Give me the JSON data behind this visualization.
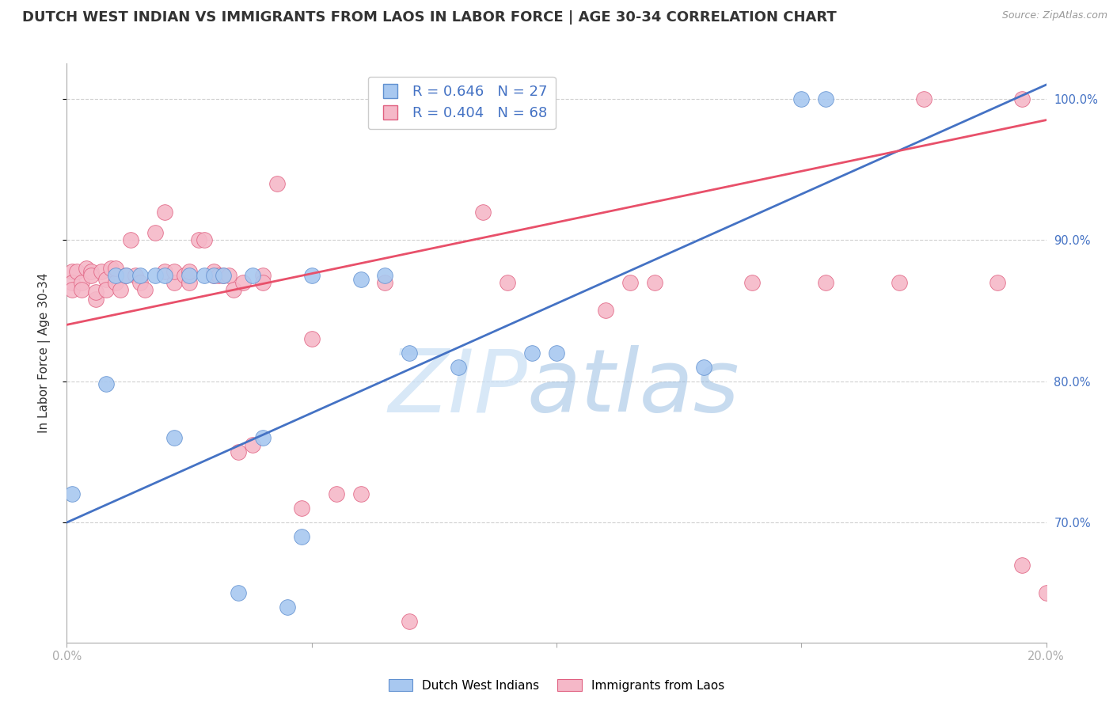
{
  "title": "DUTCH WEST INDIAN VS IMMIGRANTS FROM LAOS IN LABOR FORCE | AGE 30-34 CORRELATION CHART",
  "source": "Source: ZipAtlas.com",
  "ylabel": "In Labor Force | Age 30-34",
  "xlabel": "",
  "xlim": [
    0.0,
    0.2
  ],
  "ylim": [
    0.615,
    1.025
  ],
  "yticks": [
    0.7,
    0.8,
    0.9,
    1.0
  ],
  "ytick_labels": [
    "70.0%",
    "80.0%",
    "90.0%",
    "100.0%"
  ],
  "xticks": [
    0.0,
    0.05,
    0.1,
    0.15,
    0.2
  ],
  "xtick_labels": [
    "0.0%",
    "",
    "",
    "",
    "20.0%"
  ],
  "blue_R": 0.646,
  "blue_N": 27,
  "pink_R": 0.404,
  "pink_N": 68,
  "blue_label": "Dutch West Indians",
  "pink_label": "Immigrants from Laos",
  "blue_color": "#a8c8f0",
  "pink_color": "#f5b8c8",
  "blue_edge_color": "#6090d0",
  "pink_edge_color": "#e06080",
  "blue_line_color": "#4472c4",
  "pink_line_color": "#e8506a",
  "watermark_color": "#d8eaf8",
  "background_color": "#ffffff",
  "grid_color": "#d0d0d0",
  "title_fontsize": 13,
  "axis_label_fontsize": 11,
  "tick_fontsize": 10.5,
  "blue_scatter_x": [
    0.001,
    0.008,
    0.01,
    0.012,
    0.015,
    0.018,
    0.02,
    0.022,
    0.025,
    0.028,
    0.03,
    0.032,
    0.035,
    0.038,
    0.04,
    0.045,
    0.048,
    0.05,
    0.06,
    0.065,
    0.07,
    0.08,
    0.095,
    0.1,
    0.13,
    0.15,
    0.155
  ],
  "blue_scatter_y": [
    0.72,
    0.798,
    0.875,
    0.875,
    0.875,
    0.875,
    0.875,
    0.76,
    0.875,
    0.875,
    0.875,
    0.875,
    0.65,
    0.875,
    0.76,
    0.64,
    0.69,
    0.875,
    0.872,
    0.875,
    0.82,
    0.81,
    0.82,
    0.82,
    0.81,
    1.0,
    1.0
  ],
  "pink_scatter_x": [
    0.001,
    0.001,
    0.001,
    0.002,
    0.003,
    0.003,
    0.004,
    0.005,
    0.005,
    0.006,
    0.006,
    0.007,
    0.008,
    0.008,
    0.009,
    0.01,
    0.01,
    0.011,
    0.012,
    0.013,
    0.014,
    0.015,
    0.016,
    0.018,
    0.02,
    0.02,
    0.022,
    0.022,
    0.024,
    0.025,
    0.025,
    0.027,
    0.028,
    0.03,
    0.03,
    0.031,
    0.032,
    0.033,
    0.034,
    0.035,
    0.036,
    0.038,
    0.04,
    0.04,
    0.043,
    0.048,
    0.05,
    0.055,
    0.06,
    0.065,
    0.07,
    0.072,
    0.075,
    0.076,
    0.08,
    0.085,
    0.09,
    0.11,
    0.115,
    0.12,
    0.14,
    0.155,
    0.17,
    0.175,
    0.19,
    0.195,
    0.195,
    0.2
  ],
  "pink_scatter_y": [
    0.878,
    0.87,
    0.865,
    0.878,
    0.87,
    0.865,
    0.88,
    0.878,
    0.875,
    0.858,
    0.863,
    0.878,
    0.872,
    0.865,
    0.88,
    0.87,
    0.88,
    0.865,
    0.875,
    0.9,
    0.875,
    0.87,
    0.865,
    0.905,
    0.92,
    0.878,
    0.87,
    0.878,
    0.875,
    0.87,
    0.878,
    0.9,
    0.9,
    0.875,
    0.878,
    0.875,
    0.875,
    0.875,
    0.865,
    0.75,
    0.87,
    0.755,
    0.875,
    0.87,
    0.94,
    0.71,
    0.83,
    0.72,
    0.72,
    0.87,
    0.63,
    1.0,
    1.0,
    1.0,
    1.0,
    0.92,
    0.87,
    0.85,
    0.87,
    0.87,
    0.87,
    0.87,
    0.87,
    1.0,
    0.87,
    1.0,
    0.67,
    0.65
  ],
  "blue_trend_x0": 0.0,
  "blue_trend_x1": 0.2,
  "blue_trend_y0": 0.7,
  "blue_trend_y1": 1.01,
  "pink_trend_x0": 0.0,
  "pink_trend_x1": 0.2,
  "pink_trend_y0": 0.84,
  "pink_trend_y1": 0.985
}
